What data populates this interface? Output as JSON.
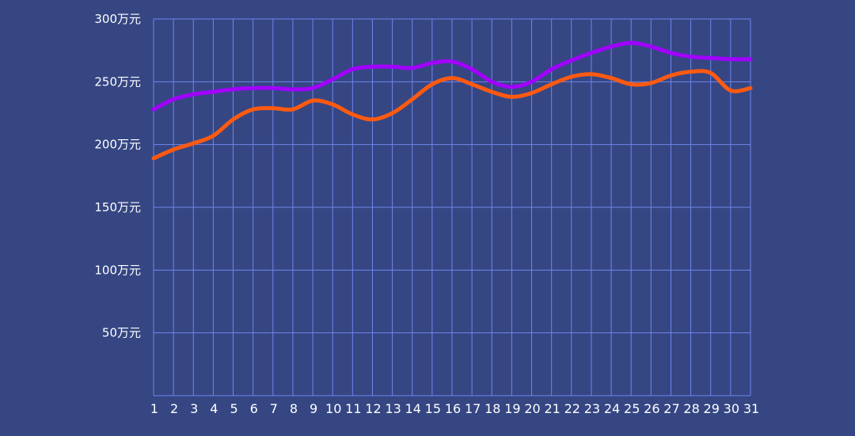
{
  "chart_data": {
    "type": "line",
    "x": [
      1,
      2,
      3,
      4,
      5,
      6,
      7,
      8,
      9,
      10,
      11,
      12,
      13,
      14,
      15,
      16,
      17,
      18,
      19,
      20,
      21,
      22,
      23,
      24,
      25,
      26,
      27,
      28,
      29,
      30,
      31
    ],
    "x_tick_labels": [
      "1",
      "2",
      "3",
      "4",
      "5",
      "6",
      "7",
      "8",
      "9",
      "10",
      "11",
      "12",
      "13",
      "14",
      "15",
      "16",
      "17",
      "18",
      "19",
      "20",
      "21",
      "22",
      "23",
      "24",
      "25",
      "26",
      "27",
      "28",
      "29",
      "30",
      "31"
    ],
    "y_ticks": [
      50,
      100,
      150,
      200,
      250,
      300
    ],
    "y_tick_labels": [
      "50万元",
      "100万元",
      "150万元",
      "200万元",
      "250万元",
      "300万元"
    ],
    "ylim": [
      0,
      300
    ],
    "xlim": [
      1,
      31
    ],
    "grid": true,
    "smooth": true,
    "series": [
      {
        "color": "#a100ff",
        "values": [
          228,
          236,
          240,
          242,
          244,
          245,
          245,
          244,
          245,
          252,
          260,
          262,
          262,
          261,
          265,
          266,
          260,
          250,
          246,
          250,
          260,
          267,
          273,
          278,
          281,
          278,
          273,
          270,
          269,
          268,
          268
        ]
      },
      {
        "color": "#ff5a10",
        "values": [
          189,
          196,
          201,
          207,
          220,
          228,
          229,
          228,
          235,
          232,
          224,
          220,
          225,
          236,
          248,
          253,
          248,
          242,
          238,
          241,
          248,
          254,
          256,
          253,
          248,
          249,
          255,
          258,
          257,
          243,
          245
        ]
      }
    ]
  },
  "colors": {
    "background": "#354683",
    "grid": "#6f86ee",
    "text": "#ffffff"
  }
}
